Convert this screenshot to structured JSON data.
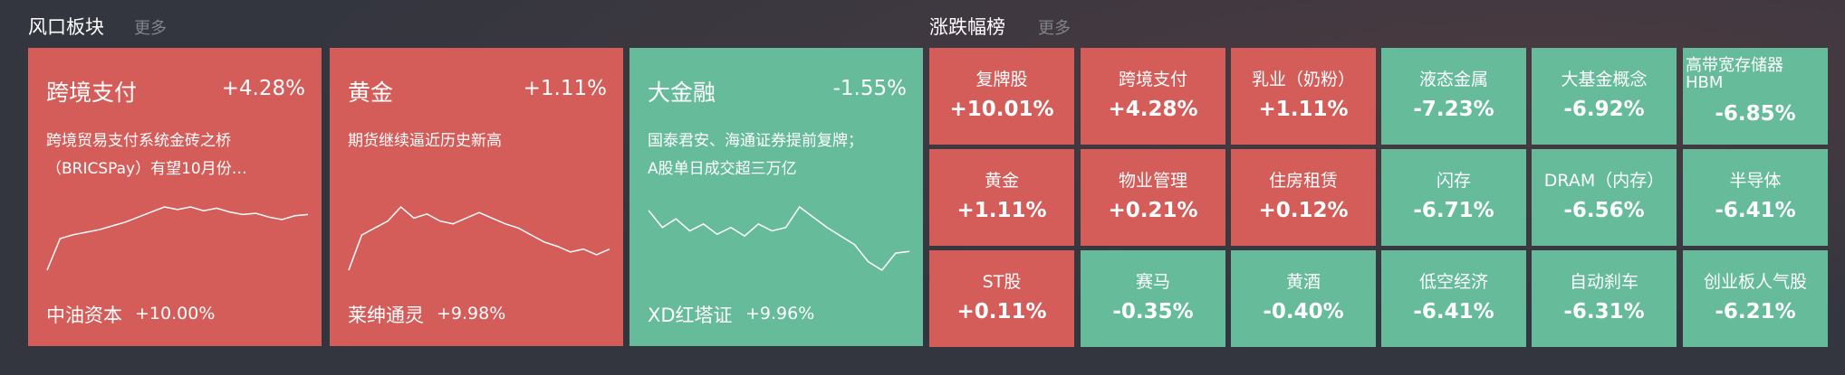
{
  "left": {
    "title": "风口板块",
    "more": "更多",
    "cards": [
      {
        "name": "跨境支付",
        "change": "+4.28%",
        "desc": [
          "跨境贸易支付系统金砖之桥",
          "（BRICSPay）有望10月份…"
        ],
        "stock": "中油资本",
        "stock_change": "+10.00%",
        "color": "#d45c59",
        "sparkline": [
          20,
          45,
          48,
          50,
          52,
          55,
          58,
          62,
          66,
          70,
          68,
          70,
          67,
          69,
          66,
          64,
          65,
          62,
          60,
          63,
          64
        ]
      },
      {
        "name": "黄金",
        "change": "+1.11%",
        "desc": [
          "期货继续逼近历史新高"
        ],
        "stock": "莱绅通灵",
        "stock_change": "+9.98%",
        "color": "#d45c59",
        "sparkline": [
          25,
          50,
          55,
          60,
          70,
          62,
          65,
          60,
          58,
          62,
          66,
          62,
          58,
          55,
          50,
          45,
          42,
          38,
          40,
          36,
          40
        ]
      },
      {
        "name": "大金融",
        "change": "-1.55%",
        "desc": [
          "国泰君安、海通证券提前复牌；",
          "A股单日成交超三万亿"
        ],
        "stock": "XD红塔证",
        "stock_change": "+9.96%",
        "color": "#66bb9b",
        "sparkline": [
          60,
          50,
          55,
          48,
          52,
          46,
          50,
          45,
          52,
          48,
          50,
          62,
          56,
          50,
          45,
          40,
          30,
          25,
          35,
          36
        ]
      }
    ]
  },
  "right": {
    "title": "涨跌幅榜",
    "more": "更多",
    "tiles": [
      {
        "name": [
          "复牌股"
        ],
        "change": "+10.01%",
        "color": "#d45c59"
      },
      {
        "name": [
          "跨境支付"
        ],
        "change": "+4.28%",
        "color": "#d45c59"
      },
      {
        "name": [
          "乳业（奶粉）"
        ],
        "change": "+1.11%",
        "color": "#d45c59"
      },
      {
        "name": [
          "液态金属"
        ],
        "change": "-7.23%",
        "color": "#66bb9b"
      },
      {
        "name": [
          "大基金概念"
        ],
        "change": "-6.92%",
        "color": "#66bb9b"
      },
      {
        "name": [
          "高带宽存储器",
          "HBM"
        ],
        "change": "-6.85%",
        "color": "#66bb9b"
      },
      {
        "name": [
          "黄金"
        ],
        "change": "+1.11%",
        "color": "#d45c59"
      },
      {
        "name": [
          "物业管理"
        ],
        "change": "+0.21%",
        "color": "#d45c59"
      },
      {
        "name": [
          "住房租赁"
        ],
        "change": "+0.12%",
        "color": "#d45c59"
      },
      {
        "name": [
          "闪存"
        ],
        "change": "-6.71%",
        "color": "#66bb9b"
      },
      {
        "name": [
          "DRAM（内存）"
        ],
        "change": "-6.56%",
        "color": "#66bb9b"
      },
      {
        "name": [
          "半导体"
        ],
        "change": "-6.41%",
        "color": "#66bb9b"
      },
      {
        "name": [
          "ST股"
        ],
        "change": "+0.11%",
        "color": "#d45c59"
      },
      {
        "name": [
          "赛马"
        ],
        "change": "-0.35%",
        "color": "#66bb9b"
      },
      {
        "name": [
          "黄酒"
        ],
        "change": "-0.40%",
        "color": "#66bb9b"
      },
      {
        "name": [
          "低空经济"
        ],
        "change": "-6.41%",
        "color": "#66bb9b"
      },
      {
        "name": [
          "自动刹车"
        ],
        "change": "-6.31%",
        "color": "#66bb9b"
      },
      {
        "name": [
          "创业板人气股"
        ],
        "change": "-6.21%",
        "color": "#66bb9b"
      }
    ]
  }
}
